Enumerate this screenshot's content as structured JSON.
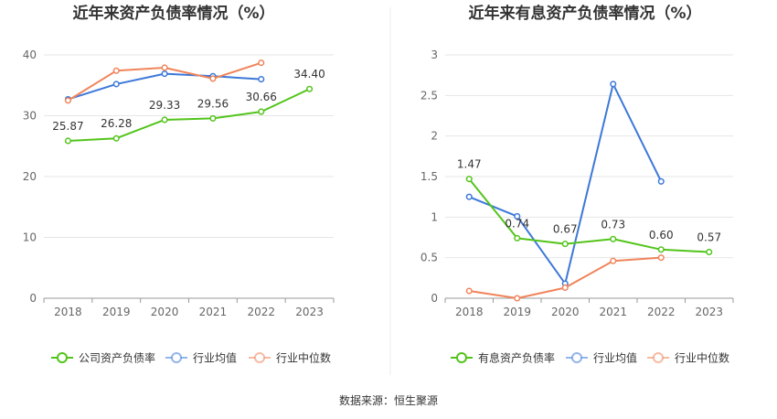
{
  "source_text": "数据来源：恒生聚源",
  "chart_data": [
    {
      "type": "line",
      "title": "近年来资产负债率情况（%）",
      "x": [
        "2018",
        "2019",
        "2020",
        "2021",
        "2022",
        "2023"
      ],
      "ylim": [
        0,
        40
      ],
      "yticks": [
        0,
        10,
        20,
        30,
        40
      ],
      "grid": true,
      "legend_position": "bottom",
      "series": [
        {
          "name": "公司资产负债率",
          "color": "#52c41a",
          "labeled": true,
          "values": [
            25.87,
            26.28,
            29.33,
            29.56,
            30.66,
            34.4
          ],
          "labels": [
            "25.87",
            "26.28",
            "29.33",
            "29.56",
            "30.66",
            "34.40"
          ]
        },
        {
          "name": "行业均值",
          "color": "#3c78d8",
          "labeled": false,
          "values": [
            32.7,
            35.2,
            36.9,
            36.5,
            36.0,
            null
          ]
        },
        {
          "name": "行业中位数",
          "color": "#f0845a",
          "labeled": false,
          "values": [
            32.5,
            37.4,
            37.9,
            36.1,
            38.7,
            null
          ]
        }
      ]
    },
    {
      "type": "line",
      "title": "近年来有息资产负债率情况（%）",
      "x": [
        "2018",
        "2019",
        "2020",
        "2021",
        "2022",
        "2023"
      ],
      "ylim": [
        0,
        3
      ],
      "yticks": [
        0,
        0.5,
        1,
        1.5,
        2,
        2.5,
        3
      ],
      "grid": true,
      "legend_position": "bottom",
      "series": [
        {
          "name": "有息资产负债率",
          "color": "#52c41a",
          "labeled": true,
          "values": [
            1.47,
            0.74,
            0.67,
            0.73,
            0.6,
            0.57
          ],
          "labels": [
            "1.47",
            "0.74",
            "0.67",
            "0.73",
            "0.60",
            "0.57"
          ]
        },
        {
          "name": "行业均值",
          "color": "#3c78d8",
          "labeled": false,
          "values": [
            1.25,
            1.01,
            0.18,
            2.64,
            1.44,
            null
          ]
        },
        {
          "name": "行业中位数",
          "color": "#f0845a",
          "labeled": false,
          "values": [
            0.09,
            0.0,
            0.13,
            0.46,
            0.5,
            null
          ]
        }
      ]
    }
  ]
}
